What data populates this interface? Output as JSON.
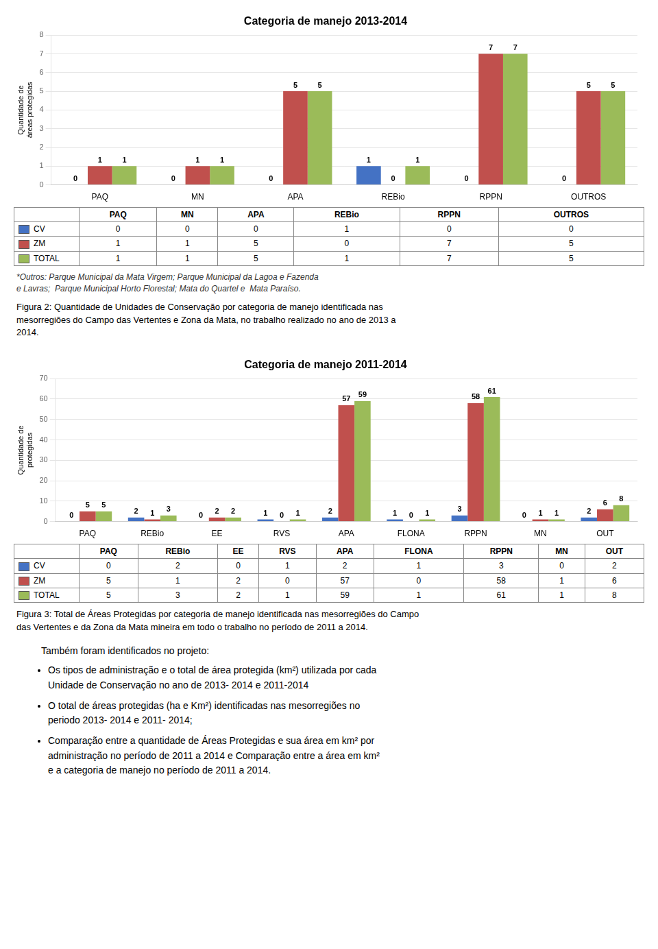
{
  "chart_data": [
    {
      "type": "bar",
      "title": "Categoria de manejo 2013-2014",
      "categories": [
        "PAQ",
        "MN",
        "APA",
        "REBio",
        "RPPN",
        "OUTROS"
      ],
      "series": [
        {
          "name": "CV",
          "color": "#4472C4",
          "values": [
            0,
            0,
            0,
            1,
            0,
            0
          ]
        },
        {
          "name": "ZM",
          "color": "#C0504D",
          "values": [
            1,
            1,
            5,
            0,
            7,
            5
          ]
        },
        {
          "name": "TOTAL",
          "color": "#9BBB59",
          "values": [
            1,
            1,
            5,
            1,
            7,
            5
          ]
        }
      ],
      "ylabel": "Quantidade de\náreas protegidas",
      "ylim": [
        0,
        8
      ],
      "yticks": [
        0,
        1,
        2,
        3,
        4,
        5,
        6,
        7,
        8
      ],
      "grid": true,
      "data_labels": true,
      "annotations": [
        [
          "*Outros: Parque Municipal da Mata Virgem; Parque Municipal da Lagoa e Fazenda",
          "e Lavras;  Parque Municipal Horto Florestal; Mata do Quartel e  Mata Paraíso."
        ],
        [
          "Figura 2: Quantidade de Unidades de Conservação por categoria de manejo identificada nas",
          "mesorregiões do Campo das Vertentes e Zona da Mata, no trabalho realizado no ano de 2013 a",
          "2014."
        ]
      ]
    },
    {
      "type": "bar",
      "title": "Categoria de manejo 2011-2014",
      "categories": [
        "PAQ",
        "REBio",
        "EE",
        "RVS",
        "APA",
        "FLONA",
        "RPPN",
        "MN",
        "OUT"
      ],
      "series": [
        {
          "name": "CV",
          "color": "#4472C4",
          "values": [
            0,
            2,
            0,
            1,
            2,
            1,
            3,
            0,
            2
          ]
        },
        {
          "name": "ZM",
          "color": "#C0504D",
          "values": [
            5,
            1,
            2,
            0,
            57,
            0,
            58,
            1,
            6
          ]
        },
        {
          "name": "TOTAL",
          "color": "#9BBB59",
          "values": [
            5,
            3,
            2,
            1,
            59,
            1,
            61,
            1,
            8
          ]
        }
      ],
      "ylabel": "Quantidade de\nprotegidas",
      "ylim": [
        0,
        70
      ],
      "yticks": [
        0,
        10,
        20,
        30,
        40,
        50,
        60,
        70
      ],
      "grid": true,
      "data_labels": true,
      "annotations": [
        [
          "Figura 3: Total de Áreas Protegidas por categoria de manejo identificada nas mesorregiões do Campo",
          "das Vertentes e da Zona da Mata mineira em todo o trabalho no período de 2011 a 2014."
        ],
        [
          "Também foram identificados no projeto:"
        ],
        [
          "Os tipos de administração e o total de área protegida (km²) utilizada por cada",
          "Unidade de Conservação no ano de 2013- 2014 e 2011-2014"
        ],
        [
          "O total de áreas protegidas (ha e Km²) identificadas nas mesorregiões no",
          "periodo 2013- 2014 e 2011- 2014;"
        ],
        [
          "Comparação entre a quantidade de Áreas Protegidas e sua área em km² por",
          "administração no período de 2011 a 2014 e Comparação entre a área em km²",
          "e a categoria de manejo no período de 2011 a 2014."
        ]
      ]
    }
  ]
}
